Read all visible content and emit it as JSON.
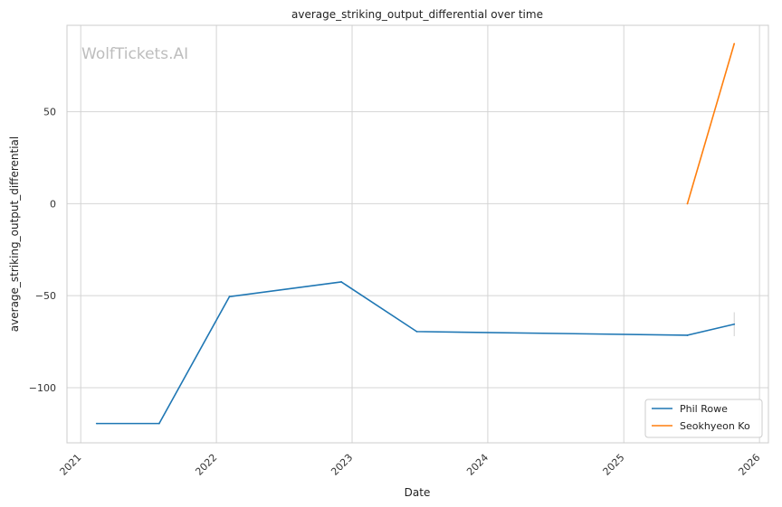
{
  "chart_data": {
    "type": "line",
    "title": "average_striking_output_differential over time",
    "xlabel": "Date",
    "ylabel": "average_striking_output_differential",
    "watermark": "WolfTickets.AI",
    "x_ticks": [
      "2021",
      "2022",
      "2023",
      "2024",
      "2025",
      "2026"
    ],
    "y_ticks": [
      50,
      0,
      -50,
      -100
    ],
    "y_tick_labels": [
      "50",
      "0",
      "−50",
      "−100"
    ],
    "xlim": [
      "2020-11-25",
      "2026-01-25"
    ],
    "ylim": [
      -130,
      97
    ],
    "grid": true,
    "legend_position": "lower-right",
    "series": [
      {
        "name": "Phil Rowe",
        "color": "#1f77b4",
        "points": [
          {
            "x": "2021-02-13",
            "y": -119.5
          },
          {
            "x": "2021-07-31",
            "y": -119.5
          },
          {
            "x": "2022-02-05",
            "y": -50.5
          },
          {
            "x": "2022-12-03",
            "y": -42.5
          },
          {
            "x": "2023-06-24",
            "y": -69.5
          },
          {
            "x": "2025-06-21",
            "y": -71.5
          },
          {
            "x": "2025-10-25",
            "y": -65.5
          }
        ],
        "error_bar": {
          "x": "2025-10-25",
          "low": -72,
          "high": -59
        }
      },
      {
        "name": "Seokhyeon Ko",
        "color": "#ff7f0e",
        "points": [
          {
            "x": "2025-06-21",
            "y": 0
          },
          {
            "x": "2025-10-25",
            "y": 87
          }
        ]
      }
    ]
  }
}
